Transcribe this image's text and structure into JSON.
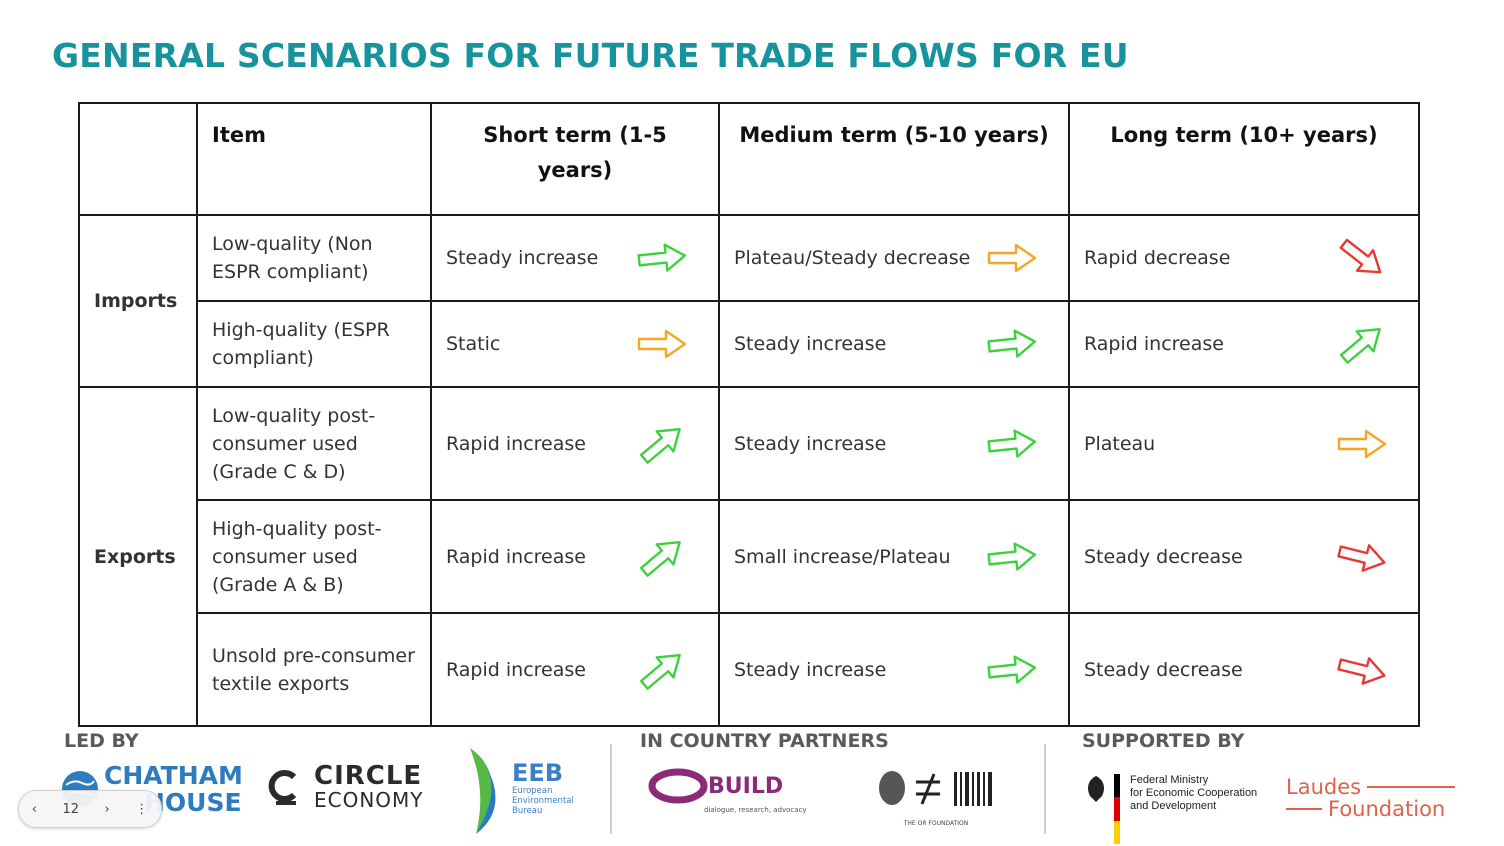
{
  "slide": {
    "title": "GENERAL SCENARIOS FOR FUTURE TRADE FLOWS FOR EU"
  },
  "table": {
    "headers": {
      "item": "Item",
      "short": "Short term (1-5 years)",
      "medium": "Medium term (5-10 years)",
      "long": "Long term (10+ years)"
    },
    "groups": {
      "imports": "Imports",
      "exports": "Exports"
    },
    "rows": [
      {
        "item": "Low-quality (Non ESPR compliant)",
        "short": {
          "text": "Steady increase",
          "arrow": "flat",
          "color": "#3ed13e"
        },
        "medium": {
          "text": "Plateau/Steady decrease",
          "arrow": "right",
          "color": "#f5a623"
        },
        "long": {
          "text": "Rapid decrease",
          "arrow": "down",
          "color": "#e53935"
        }
      },
      {
        "item": "High-quality (ESPR compliant)",
        "short": {
          "text": "Static",
          "arrow": "right",
          "color": "#f5a623"
        },
        "medium": {
          "text": "Steady increase",
          "arrow": "flat",
          "color": "#3ed13e"
        },
        "long": {
          "text": "Rapid increase",
          "arrow": "up",
          "color": "#3ed13e"
        }
      },
      {
        "item": "Low-quality post-consumer used (Grade C & D)",
        "short": {
          "text": "Rapid increase",
          "arrow": "up",
          "color": "#3ed13e"
        },
        "medium": {
          "text": "Steady increase",
          "arrow": "flat",
          "color": "#3ed13e"
        },
        "long": {
          "text": "Plateau",
          "arrow": "right",
          "color": "#f5a623"
        }
      },
      {
        "item": "High-quality post-consumer used (Grade A & B)",
        "short": {
          "text": "Rapid increase",
          "arrow": "up",
          "color": "#3ed13e"
        },
        "medium": {
          "text": "Small increase/Plateau",
          "arrow": "flat",
          "color": "#3ed13e"
        },
        "long": {
          "text": "Steady decrease",
          "arrow": "slight-down",
          "color": "#e53935"
        }
      },
      {
        "item": "Unsold pre-consumer textile exports",
        "short": {
          "text": "Rapid increase",
          "arrow": "up",
          "color": "#3ed13e"
        },
        "medium": {
          "text": "Steady increase",
          "arrow": "flat",
          "color": "#3ed13e"
        },
        "long": {
          "text": "Steady decrease",
          "arrow": "slight-down",
          "color": "#e53935"
        }
      }
    ]
  },
  "footer": {
    "led_by": "LED BY",
    "in_country": "IN COUNTRY PARTNERS",
    "supported_by": "SUPPORTED BY",
    "chatham_1": "CHATHAM",
    "chatham_2": "HOUSE",
    "circle_1": "CIRCLE",
    "circle_2": "ECONOMY",
    "eeb_1": "EEB",
    "eeb_2": "European",
    "eeb_3": "Environmental",
    "eeb_4": "Bureau",
    "obuild_1": "BUILD",
    "obuild_2": "dialogue, research, advocacy",
    "orf_caption": "THE OR FOUNDATION",
    "bmz_1": "Federal Ministry",
    "bmz_2": "for Economic Cooperation",
    "bmz_3": "and Development",
    "laudes_1": "Laudes",
    "laudes_2": "Foundation"
  },
  "nav": {
    "prev": "‹",
    "page": "12",
    "next": "›",
    "more": "⋮"
  }
}
